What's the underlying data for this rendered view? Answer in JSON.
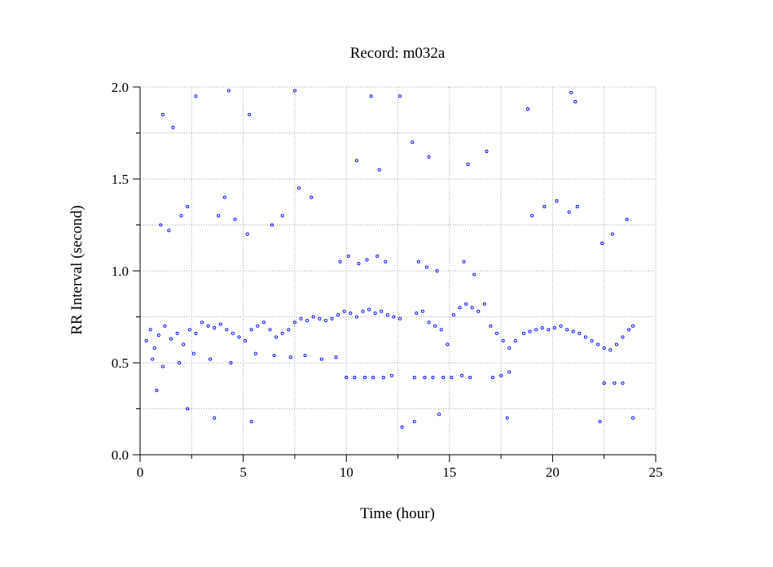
{
  "chart_data": {
    "type": "scatter",
    "title": "Record:  m032a",
    "xlabel": "Time (hour)",
    "ylabel": "RR Interval (second)",
    "xlim": [
      0,
      25
    ],
    "ylim": [
      0.0,
      2.0
    ],
    "x_ticks": [
      "0",
      "5",
      "10",
      "15",
      "20",
      "25"
    ],
    "y_ticks": [
      "0.0",
      "0.5",
      "1.0",
      "1.5",
      "2.0"
    ],
    "grid": true,
    "marker_color": "#0000ff",
    "series": [
      {
        "values": [
          [
            0.3,
            0.62
          ],
          [
            0.5,
            0.68
          ],
          [
            0.7,
            0.58
          ],
          [
            0.9,
            0.65
          ],
          [
            1.2,
            0.7
          ],
          [
            1.5,
            0.63
          ],
          [
            1.8,
            0.66
          ],
          [
            2.1,
            0.6
          ],
          [
            2.4,
            0.68
          ],
          [
            2.7,
            0.66
          ],
          [
            3.0,
            0.72
          ],
          [
            3.3,
            0.7
          ],
          [
            3.6,
            0.69
          ],
          [
            3.9,
            0.71
          ],
          [
            4.2,
            0.68
          ],
          [
            4.5,
            0.66
          ],
          [
            4.8,
            0.64
          ],
          [
            5.1,
            0.62
          ],
          [
            5.4,
            0.68
          ],
          [
            5.7,
            0.7
          ],
          [
            6.0,
            0.72
          ],
          [
            6.3,
            0.68
          ],
          [
            6.6,
            0.64
          ],
          [
            6.9,
            0.66
          ],
          [
            7.2,
            0.68
          ],
          [
            7.5,
            0.72
          ],
          [
            7.8,
            0.74
          ],
          [
            8.1,
            0.73
          ],
          [
            8.4,
            0.75
          ],
          [
            8.7,
            0.74
          ],
          [
            9.0,
            0.73
          ],
          [
            9.3,
            0.74
          ],
          [
            9.6,
            0.76
          ],
          [
            9.9,
            0.78
          ],
          [
            10.2,
            0.77
          ],
          [
            10.5,
            0.75
          ],
          [
            10.8,
            0.78
          ],
          [
            11.1,
            0.79
          ],
          [
            11.4,
            0.77
          ],
          [
            11.7,
            0.78
          ],
          [
            12.0,
            0.76
          ],
          [
            12.3,
            0.75
          ],
          [
            12.6,
            0.74
          ],
          [
            13.4,
            0.77
          ],
          [
            13.7,
            0.78
          ],
          [
            14.0,
            0.72
          ],
          [
            14.3,
            0.7
          ],
          [
            14.6,
            0.68
          ],
          [
            14.9,
            0.6
          ],
          [
            15.2,
            0.76
          ],
          [
            15.5,
            0.8
          ],
          [
            15.8,
            0.82
          ],
          [
            16.1,
            0.8
          ],
          [
            16.4,
            0.78
          ],
          [
            16.7,
            0.82
          ],
          [
            17.0,
            0.7
          ],
          [
            17.3,
            0.66
          ],
          [
            17.6,
            0.62
          ],
          [
            17.9,
            0.58
          ],
          [
            18.2,
            0.62
          ],
          [
            18.6,
            0.66
          ],
          [
            18.9,
            0.67
          ],
          [
            19.2,
            0.68
          ],
          [
            19.5,
            0.69
          ],
          [
            19.8,
            0.68
          ],
          [
            20.1,
            0.69
          ],
          [
            20.4,
            0.7
          ],
          [
            20.7,
            0.68
          ],
          [
            21.0,
            0.67
          ],
          [
            21.3,
            0.66
          ],
          [
            21.6,
            0.64
          ],
          [
            21.9,
            0.62
          ],
          [
            22.2,
            0.6
          ],
          [
            22.5,
            0.58
          ],
          [
            22.8,
            0.57
          ],
          [
            23.1,
            0.6
          ],
          [
            23.4,
            0.64
          ],
          [
            23.7,
            0.68
          ],
          [
            23.9,
            0.7
          ],
          [
            0.6,
            0.52
          ],
          [
            1.1,
            0.48
          ],
          [
            1.9,
            0.5
          ],
          [
            2.6,
            0.55
          ],
          [
            3.4,
            0.52
          ],
          [
            4.4,
            0.5
          ],
          [
            5.6,
            0.55
          ],
          [
            6.5,
            0.54
          ],
          [
            7.3,
            0.53
          ],
          [
            8.0,
            0.54
          ],
          [
            8.8,
            0.52
          ],
          [
            9.5,
            0.53
          ],
          [
            10.0,
            0.42
          ],
          [
            10.4,
            0.42
          ],
          [
            10.9,
            0.42
          ],
          [
            11.3,
            0.42
          ],
          [
            11.8,
            0.42
          ],
          [
            12.2,
            0.43
          ],
          [
            13.3,
            0.42
          ],
          [
            13.8,
            0.42
          ],
          [
            14.2,
            0.42
          ],
          [
            14.7,
            0.42
          ],
          [
            15.1,
            0.42
          ],
          [
            15.6,
            0.43
          ],
          [
            16.0,
            0.42
          ],
          [
            17.1,
            0.42
          ],
          [
            17.5,
            0.43
          ],
          [
            17.9,
            0.45
          ],
          [
            22.5,
            0.39
          ],
          [
            23.0,
            0.39
          ],
          [
            23.4,
            0.39
          ],
          [
            9.7,
            1.05
          ],
          [
            10.1,
            1.08
          ],
          [
            10.6,
            1.04
          ],
          [
            11.0,
            1.06
          ],
          [
            11.5,
            1.08
          ],
          [
            11.9,
            1.05
          ],
          [
            13.5,
            1.05
          ],
          [
            13.9,
            1.02
          ],
          [
            14.4,
            1.0
          ],
          [
            15.7,
            1.05
          ],
          [
            16.2,
            0.98
          ],
          [
            1.0,
            1.25
          ],
          [
            1.4,
            1.22
          ],
          [
            2.0,
            1.3
          ],
          [
            2.3,
            1.35
          ],
          [
            3.8,
            1.3
          ],
          [
            4.1,
            1.4
          ],
          [
            4.6,
            1.28
          ],
          [
            5.2,
            1.2
          ],
          [
            6.4,
            1.25
          ],
          [
            6.9,
            1.3
          ],
          [
            7.7,
            1.45
          ],
          [
            8.3,
            1.4
          ],
          [
            19.0,
            1.3
          ],
          [
            19.6,
            1.35
          ],
          [
            20.2,
            1.38
          ],
          [
            20.8,
            1.32
          ],
          [
            21.2,
            1.35
          ],
          [
            22.4,
            1.15
          ],
          [
            22.9,
            1.2
          ],
          [
            23.6,
            1.28
          ],
          [
            1.1,
            1.85
          ],
          [
            1.6,
            1.78
          ],
          [
            2.7,
            1.95
          ],
          [
            4.3,
            1.98
          ],
          [
            5.3,
            1.85
          ],
          [
            7.5,
            1.98
          ],
          [
            11.2,
            1.95
          ],
          [
            12.6,
            1.95
          ],
          [
            20.9,
            1.97
          ],
          [
            21.1,
            1.92
          ],
          [
            10.5,
            1.6
          ],
          [
            11.6,
            1.55
          ],
          [
            13.2,
            1.7
          ],
          [
            14.0,
            1.62
          ],
          [
            15.9,
            1.58
          ],
          [
            16.8,
            1.65
          ],
          [
            18.8,
            1.88
          ],
          [
            0.8,
            0.35
          ],
          [
            2.3,
            0.25
          ],
          [
            3.6,
            0.2
          ],
          [
            5.4,
            0.18
          ],
          [
            12.7,
            0.15
          ],
          [
            13.3,
            0.18
          ],
          [
            14.5,
            0.22
          ],
          [
            17.8,
            0.2
          ],
          [
            22.3,
            0.18
          ],
          [
            23.9,
            0.2
          ]
        ]
      }
    ]
  }
}
